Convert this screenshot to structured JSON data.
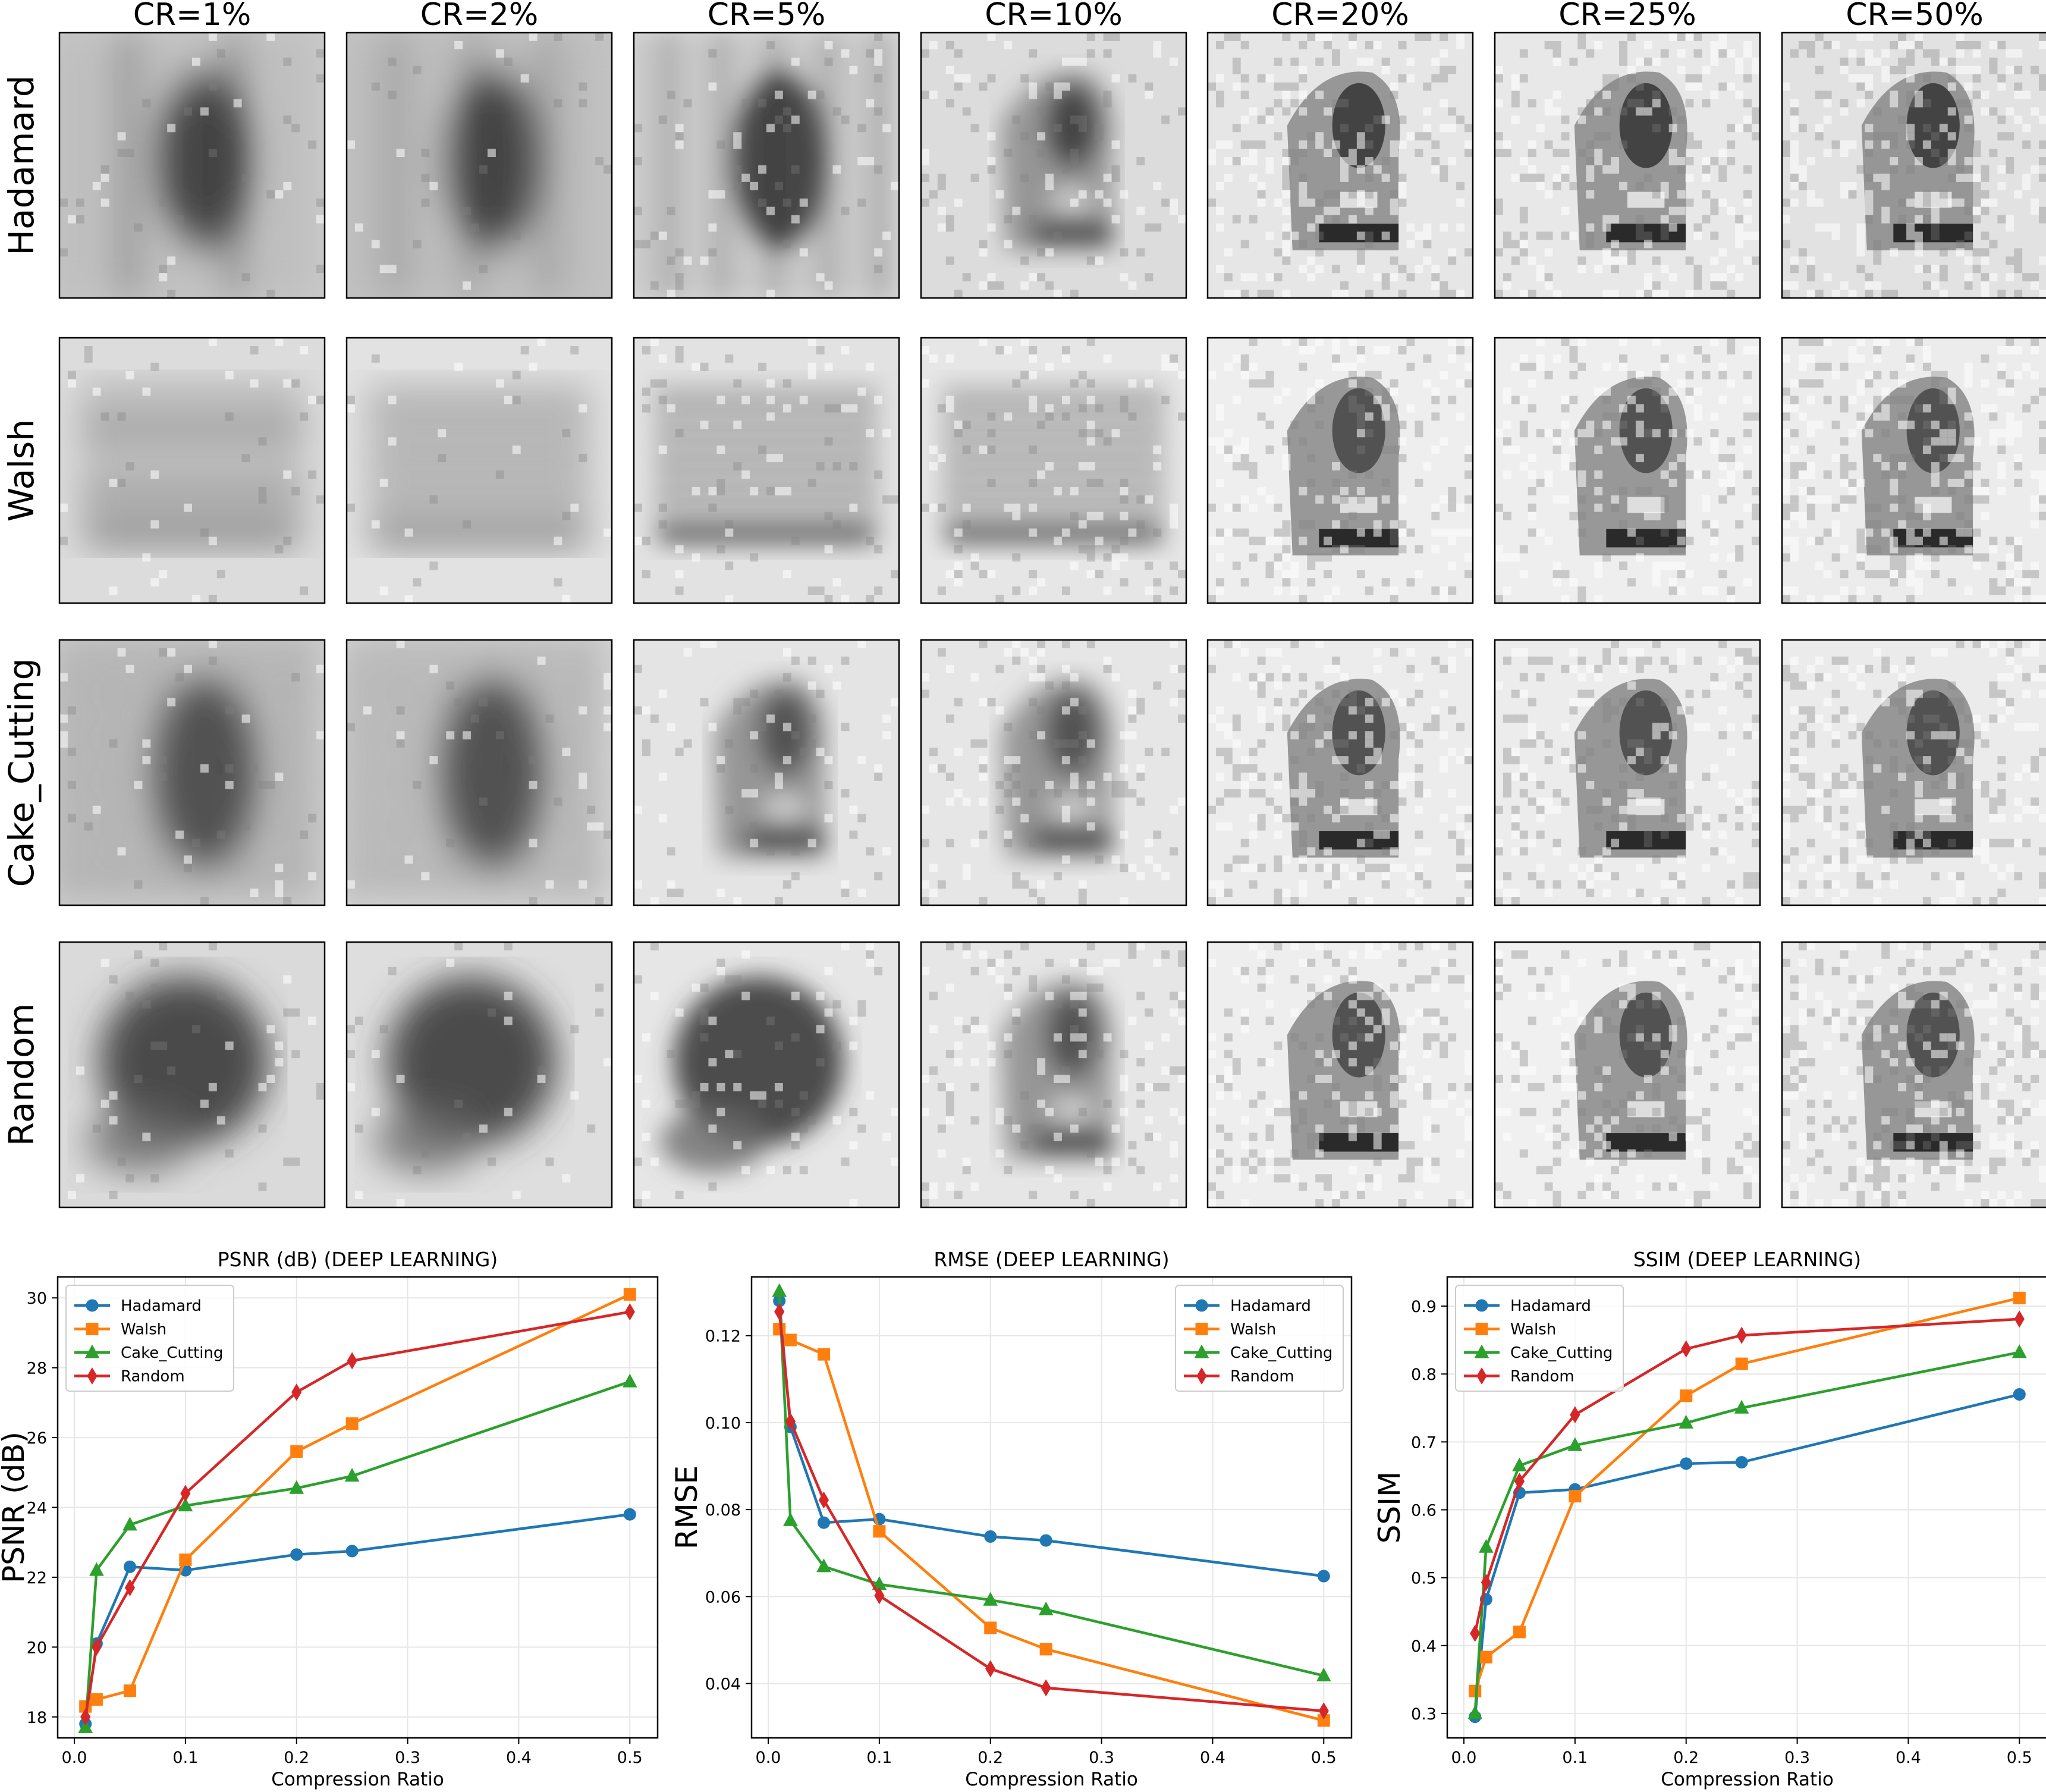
{
  "image_grid": {
    "column_headers": [
      "CR=1%",
      "CR=2%",
      "CR=5%",
      "CR=10%",
      "CR=20%",
      "CR=25%",
      "CR=50%"
    ],
    "row_labels": [
      "Hadamard",
      "Walsh",
      "Cake_Cutting",
      "Random"
    ]
  },
  "colors": {
    "Hadamard": "#1f77b4",
    "Walsh": "#ff7f0e",
    "Cake_Cutting": "#2ca02c",
    "Random": "#d62728",
    "grid": "#e6e6e6"
  },
  "chart_data": [
    {
      "type": "line",
      "title": "PSNR (dB) (DEEP LEARNING)",
      "xlabel": "Compression Ratio",
      "ylabel": "PSNR (dB)",
      "x": [
        0.01,
        0.02,
        0.05,
        0.1,
        0.2,
        0.25,
        0.5
      ],
      "xlim": [
        -0.015,
        0.525
      ],
      "ylim": [
        17.4,
        30.6
      ],
      "xticks": [
        0.0,
        0.1,
        0.2,
        0.3,
        0.4,
        0.5
      ],
      "xtick_labels": [
        "0.0",
        "0.1",
        "0.2",
        "0.3",
        "0.4",
        "0.5"
      ],
      "yticks": [
        18,
        20,
        22,
        24,
        26,
        28,
        30
      ],
      "ytick_labels": [
        "18",
        "20",
        "22",
        "24",
        "26",
        "28",
        "30"
      ],
      "grid": true,
      "legend_position": "top-left",
      "series": [
        {
          "name": "Hadamard",
          "marker": "circle",
          "values": [
            17.8,
            20.1,
            22.3,
            22.2,
            22.65,
            22.75,
            23.8
          ]
        },
        {
          "name": "Walsh",
          "marker": "square",
          "values": [
            18.3,
            18.5,
            18.75,
            22.5,
            25.6,
            26.4,
            30.1
          ]
        },
        {
          "name": "Cake_Cutting",
          "marker": "triangle",
          "values": [
            17.7,
            22.2,
            23.5,
            24.05,
            24.55,
            24.9,
            27.6
          ]
        },
        {
          "name": "Random",
          "marker": "diamond",
          "values": [
            18.0,
            20.0,
            21.7,
            24.4,
            27.3,
            28.2,
            29.6
          ]
        }
      ]
    },
    {
      "type": "line",
      "title": "RMSE (DEEP LEARNING)",
      "xlabel": "Compression Ratio",
      "ylabel": "RMSE",
      "x": [
        0.01,
        0.02,
        0.05,
        0.1,
        0.2,
        0.25,
        0.5
      ],
      "xlim": [
        -0.015,
        0.525
      ],
      "ylim": [
        0.0275,
        0.1335
      ],
      "xticks": [
        0.0,
        0.1,
        0.2,
        0.3,
        0.4,
        0.5
      ],
      "xtick_labels": [
        "0.0",
        "0.1",
        "0.2",
        "0.3",
        "0.4",
        "0.5"
      ],
      "yticks": [
        0.04,
        0.06,
        0.08,
        0.1,
        0.12
      ],
      "ytick_labels": [
        "0.04",
        "0.06",
        "0.08",
        "0.10",
        "0.12"
      ],
      "grid": true,
      "legend_position": "top-right",
      "series": [
        {
          "name": "Hadamard",
          "marker": "circle",
          "values": [
            0.128,
            0.099,
            0.077,
            0.0778,
            0.0738,
            0.0729,
            0.0647
          ]
        },
        {
          "name": "Walsh",
          "marker": "square",
          "values": [
            0.1215,
            0.119,
            0.1157,
            0.075,
            0.0528,
            0.0479,
            0.0315
          ]
        },
        {
          "name": "Cake_Cutting",
          "marker": "triangle",
          "values": [
            0.1302,
            0.0775,
            0.0669,
            0.0628,
            0.0592,
            0.057,
            0.0418
          ]
        },
        {
          "name": "Random",
          "marker": "diamond",
          "values": [
            0.1255,
            0.1003,
            0.0822,
            0.0602,
            0.0434,
            0.039,
            0.0337
          ]
        }
      ]
    },
    {
      "type": "line",
      "title": "SSIM (DEEP LEARNING)",
      "xlabel": "Compression Ratio",
      "ylabel": "SSIM",
      "x": [
        0.01,
        0.02,
        0.05,
        0.1,
        0.2,
        0.25,
        0.5
      ],
      "xlim": [
        -0.015,
        0.525
      ],
      "ylim": [
        0.264,
        0.943
      ],
      "xticks": [
        0.0,
        0.1,
        0.2,
        0.3,
        0.4,
        0.5
      ],
      "xtick_labels": [
        "0.0",
        "0.1",
        "0.2",
        "0.3",
        "0.4",
        "0.5"
      ],
      "yticks": [
        0.3,
        0.4,
        0.5,
        0.6,
        0.7,
        0.8,
        0.9
      ],
      "ytick_labels": [
        "0.3",
        "0.4",
        "0.5",
        "0.6",
        "0.7",
        "0.8",
        "0.9"
      ],
      "grid": true,
      "legend_position": "top-left",
      "series": [
        {
          "name": "Hadamard",
          "marker": "circle",
          "values": [
            0.295,
            0.468,
            0.625,
            0.63,
            0.668,
            0.67,
            0.77
          ]
        },
        {
          "name": "Walsh",
          "marker": "square",
          "values": [
            0.333,
            0.383,
            0.42,
            0.62,
            0.768,
            0.815,
            0.912
          ]
        },
        {
          "name": "Cake_Cutting",
          "marker": "triangle",
          "values": [
            0.3,
            0.545,
            0.665,
            0.695,
            0.728,
            0.75,
            0.832
          ]
        },
        {
          "name": "Random",
          "marker": "diamond",
          "values": [
            0.418,
            0.493,
            0.642,
            0.74,
            0.837,
            0.857,
            0.881
          ]
        }
      ]
    }
  ]
}
